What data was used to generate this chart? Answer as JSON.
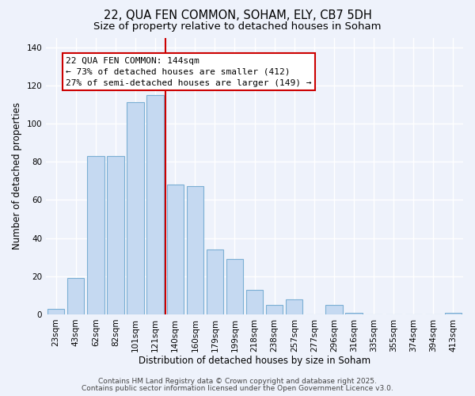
{
  "title": "22, QUA FEN COMMON, SOHAM, ELY, CB7 5DH",
  "subtitle": "Size of property relative to detached houses in Soham",
  "xlabel": "Distribution of detached houses by size in Soham",
  "ylabel": "Number of detached properties",
  "bar_labels": [
    "23sqm",
    "43sqm",
    "62sqm",
    "82sqm",
    "101sqm",
    "121sqm",
    "140sqm",
    "160sqm",
    "179sqm",
    "199sqm",
    "218sqm",
    "238sqm",
    "257sqm",
    "277sqm",
    "296sqm",
    "316sqm",
    "335sqm",
    "355sqm",
    "374sqm",
    "394sqm",
    "413sqm"
  ],
  "bar_values": [
    3,
    19,
    83,
    83,
    111,
    115,
    68,
    67,
    34,
    29,
    13,
    5,
    8,
    0,
    5,
    1,
    0,
    0,
    0,
    0,
    1
  ],
  "bar_color": "#c5d9f1",
  "bar_edge_color": "#7bafd4",
  "vline_x": 5.5,
  "vline_color": "#cc0000",
  "ylim": [
    0,
    145
  ],
  "yticks": [
    0,
    20,
    40,
    60,
    80,
    100,
    120,
    140
  ],
  "ann_title": "22 QUA FEN COMMON: 144sqm",
  "ann_line1": "← 73% of detached houses are smaller (412)",
  "ann_line2": "27% of semi-detached houses are larger (149) →",
  "footer1": "Contains HM Land Registry data © Crown copyright and database right 2025.",
  "footer2": "Contains public sector information licensed under the Open Government Licence v3.0.",
  "background_color": "#eef2fb",
  "grid_color": "#ffffff",
  "title_fontsize": 10.5,
  "subtitle_fontsize": 9.5,
  "axis_label_fontsize": 8.5,
  "tick_fontsize": 7.5,
  "ann_fontsize": 8,
  "footer_fontsize": 6.5
}
